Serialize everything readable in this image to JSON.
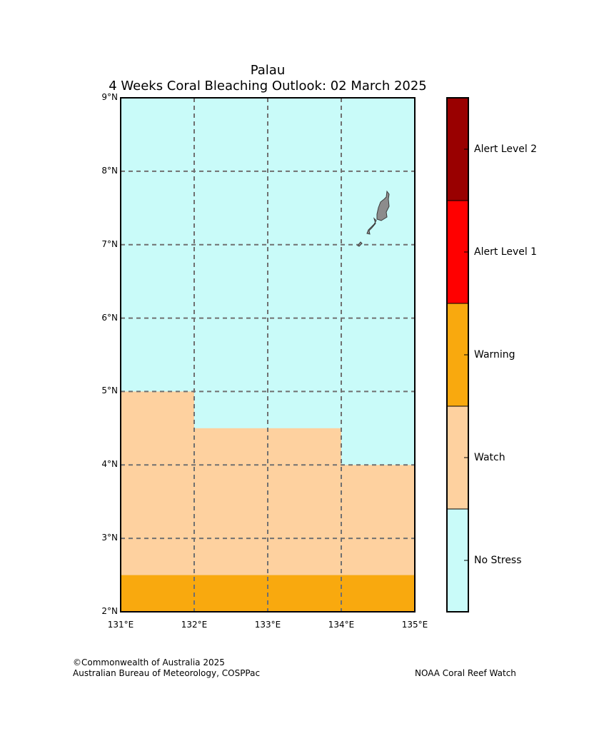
{
  "header": {
    "title": "Palau",
    "subtitle": "4 Weeks Coral Bleaching Outlook: 02 March 2025"
  },
  "map": {
    "lon_range": [
      131,
      135
    ],
    "lat_range": [
      2,
      9
    ],
    "lon_ticks": [
      "131°E",
      "132°E",
      "133°E",
      "134°E",
      "135°E"
    ],
    "lat_ticks": [
      "9°N",
      "8°N",
      "7°N",
      "6°N",
      "5°N",
      "4°N",
      "3°N",
      "2°N"
    ],
    "grid": "dashed",
    "regions": [
      {
        "name": "Watch",
        "lon": [
          131,
          132
        ],
        "lat": [
          2.5,
          5.0
        ]
      },
      {
        "name": "Watch",
        "lon": [
          132,
          134
        ],
        "lat": [
          2.5,
          4.5
        ]
      },
      {
        "name": "Watch",
        "lon": [
          134,
          135
        ],
        "lat": [
          2.5,
          4.0
        ]
      },
      {
        "name": "Warning",
        "lon": [
          131,
          135
        ],
        "lat": [
          2.0,
          2.5
        ]
      }
    ],
    "background_level": "No Stress"
  },
  "legend": {
    "levels": [
      {
        "label": "Alert Level 2",
        "color": "#990000"
      },
      {
        "label": "Alert Level 1",
        "color": "#ff0000"
      },
      {
        "label": "Warning",
        "color": "#f9a90e"
      },
      {
        "label": "Watch",
        "color": "#fed19f"
      },
      {
        "label": "No Stress",
        "color": "#c9fbf9"
      }
    ]
  },
  "footer": {
    "copyright": "©Commonwealth of Australia 2025",
    "organization": "Australian Bureau of Meteorology, COSPPac",
    "partner": "NOAA Coral Reef Watch"
  }
}
